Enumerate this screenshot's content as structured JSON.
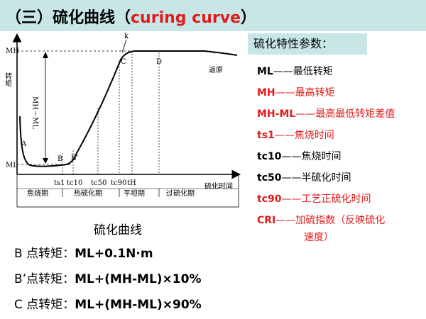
{
  "title": {
    "prefix": "（三）硫化曲线（",
    "english": "curing curve",
    "suffix": "）"
  },
  "figure": {
    "y_axis_label": "转矩",
    "x_axis_label": "硫化时间",
    "y_tick_mh": "MH",
    "y_tick_ml": "ML",
    "span_label": "MH－ML",
    "points": {
      "a": "A",
      "b": "B",
      "b_prime": "B'",
      "c": "C",
      "d": "D",
      "k": "k"
    },
    "revert_label": "返原",
    "x_ticks": [
      "ts1",
      "tc10",
      "tc50",
      "tc90",
      "tH"
    ],
    "phases": [
      "焦烧期",
      "热硫化期",
      "平坦期",
      "过硫化期"
    ]
  },
  "figure_caption": "硫化曲线",
  "params": {
    "header": "硫化特性参数：",
    "items": [
      {
        "name": "ML",
        "dash": "——",
        "desc": "最低转矩",
        "color": "#000000"
      },
      {
        "name": "MH",
        "dash": "——",
        "desc": "最高转矩",
        "color": "#e11a1a"
      },
      {
        "name": "MH-ML",
        "dash": "——",
        "desc": "最高最低转矩差值",
        "color": "#e11a1a"
      },
      {
        "name": "ts1",
        "dash": "——",
        "desc": "焦烧时间",
        "color": "#e11a1a"
      },
      {
        "name": "tc10",
        "dash": "——",
        "desc": "焦烧时间",
        "color": "#000000"
      },
      {
        "name": "tc50",
        "dash": "——",
        "desc": "半硫化时间",
        "color": "#000000"
      },
      {
        "name": "tc90",
        "dash": "——",
        "desc": "工艺正硫化时间",
        "color": "#e11a1a"
      },
      {
        "name": "CRI",
        "dash": "——",
        "desc": "加硫指数（反映硫化",
        "color": "#e11a1a"
      }
    ],
    "continuation": "速度）"
  },
  "torques": {
    "b": {
      "label": "B 点转矩：",
      "value": "ML+0.1N·m"
    },
    "b_prime": {
      "label": "B’点转矩：",
      "value": "ML+(MH-ML)×10%"
    },
    "c": {
      "label": "C 点转矩：",
      "value": "ML+(MH-ML)×90%"
    }
  },
  "colors": {
    "title_bg": "#c8e6e8",
    "accent_red": "#e11a1a"
  }
}
